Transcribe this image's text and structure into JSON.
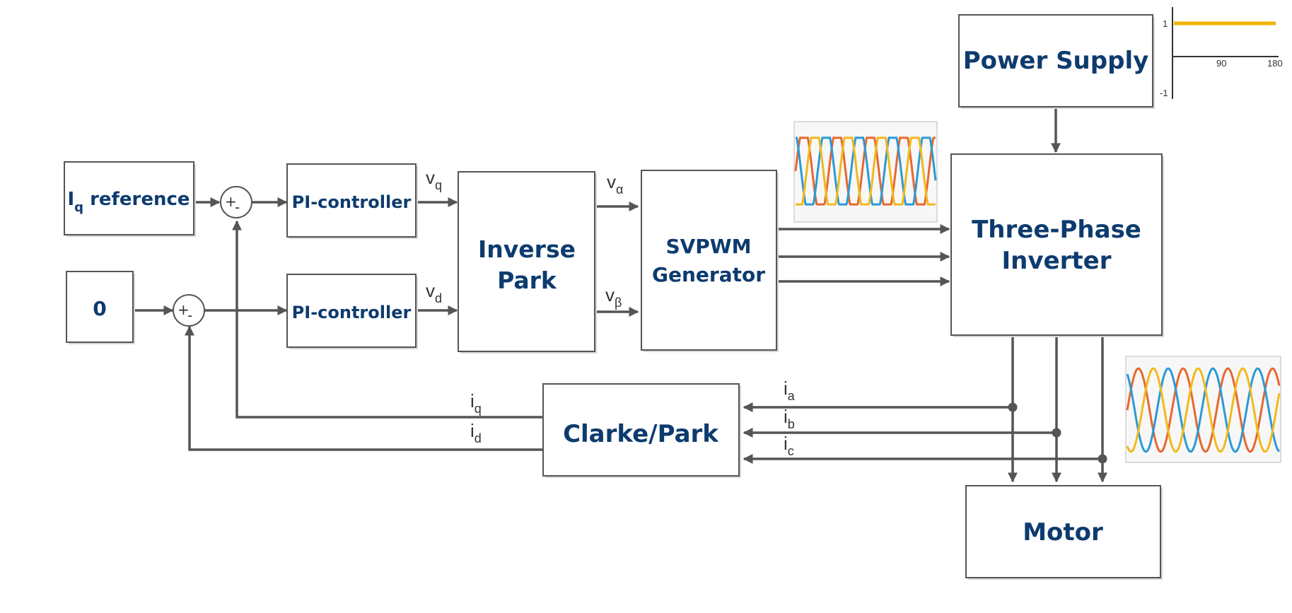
{
  "blocks": {
    "iq_reference": {
      "main": "I",
      "sub": "q",
      "rest": " reference"
    },
    "zero": "0",
    "pi_top": "PI-controller",
    "pi_bottom": "PI-controller",
    "inverse_park": [
      "Inverse",
      "Park"
    ],
    "svpwm": [
      "SVPWM",
      "Generator"
    ],
    "inverter": [
      "Three-Phase",
      "Inverter"
    ],
    "power_supply": "Power Supply",
    "clarke_park": "Clarke/Park",
    "motor": "Motor"
  },
  "signals": {
    "vq": {
      "main": "v",
      "sub": "q"
    },
    "vd": {
      "main": "v",
      "sub": "d"
    },
    "valpha": {
      "main": "v",
      "sub": "α"
    },
    "vbeta": {
      "main": "v",
      "sub": "β"
    },
    "iq": {
      "main": "i",
      "sub": "q"
    },
    "id": {
      "main": "i",
      "sub": "d"
    },
    "ia": {
      "main": "i",
      "sub": "a"
    },
    "ib": {
      "main": "i",
      "sub": "b"
    },
    "ic": {
      "main": "i",
      "sub": "c"
    }
  },
  "summing": {
    "plus": "+",
    "minus": "-"
  },
  "power_plot": {
    "ytick_top": "1",
    "ytick_bottom": "-1",
    "xtick_mid": "90",
    "xtick_end": "180"
  },
  "colors": {
    "label": "#0d3b6e",
    "wire": "#555555",
    "phase_a": "#e8672d",
    "phase_b": "#2a9ad6",
    "phase_c": "#f2b91c",
    "power": "#f2b400"
  }
}
